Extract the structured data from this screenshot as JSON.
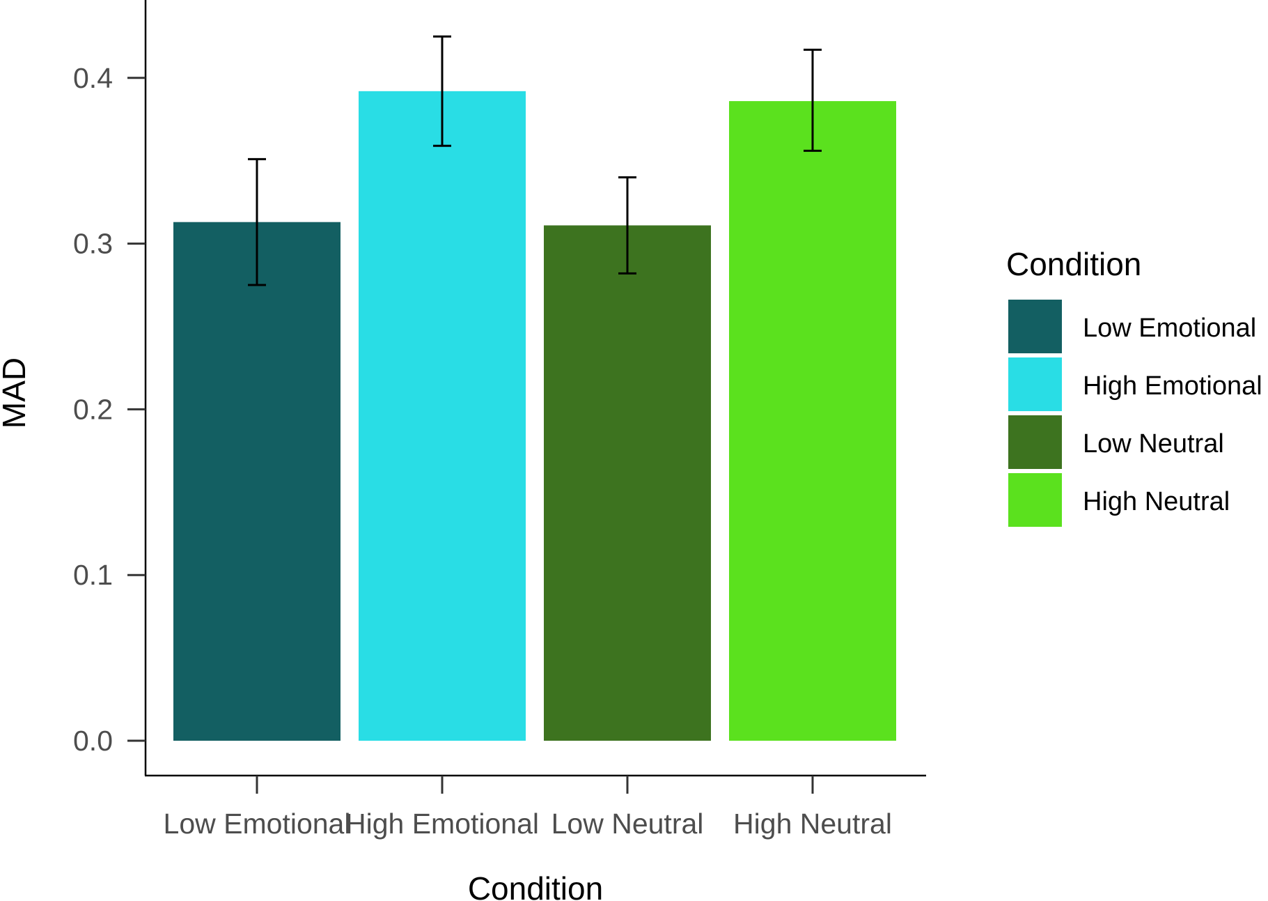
{
  "chart_data": {
    "type": "bar",
    "title": "",
    "xlabel": "Condition",
    "ylabel": "MAD",
    "ylim": [
      0,
      0.45
    ],
    "yticks": [
      0.0,
      0.1,
      0.2,
      0.3,
      0.4
    ],
    "ytick_labels": [
      "0.0",
      "0.1",
      "0.2",
      "0.3",
      "0.4"
    ],
    "categories": [
      "Low Emotional",
      "High Emotional",
      "Low Neutral",
      "High Neutral"
    ],
    "values": [
      0.313,
      0.392,
      0.311,
      0.386
    ],
    "error_low": [
      0.275,
      0.359,
      0.282,
      0.356
    ],
    "error_high": [
      0.351,
      0.425,
      0.34,
      0.417
    ],
    "colors": [
      "#135f62",
      "#29dde5",
      "#3d731f",
      "#5be11e"
    ],
    "grid": false,
    "legend": {
      "title": "Condition",
      "placement": "right",
      "entries": [
        "Low Emotional",
        "High Emotional",
        "Low Neutral",
        "High Neutral"
      ]
    }
  }
}
